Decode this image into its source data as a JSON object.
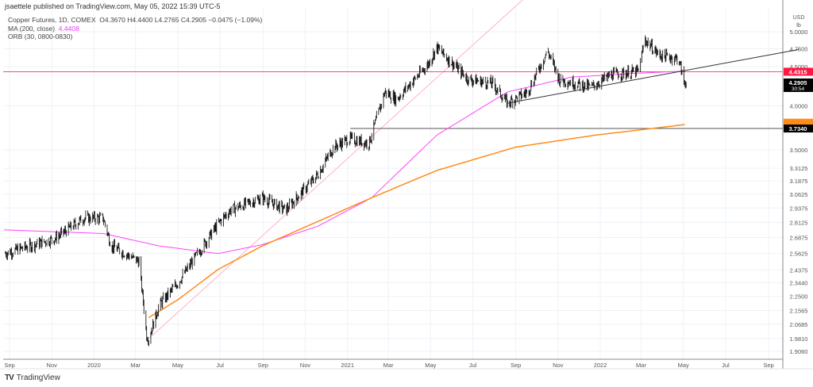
{
  "header": {
    "published": "jsaettele published on TradingView.com, May 05, 2022 15:39 UTC-5"
  },
  "legend": {
    "symbol": "Copper Futures, 1D, COMEX",
    "ohlc": "O4.3670  H4.4400  L4.2765  C4.2905  −0.0475 (−1.09%)",
    "ma_label": "MA (200, close)",
    "ma_value": "4.4408",
    "orb_label": "ORB (30, 0800-0830)"
  },
  "footer": {
    "brand": "TradingView",
    "logo": "TV"
  },
  "chart_data": {
    "type": "ohlc",
    "scale": "log",
    "ylim": [
      1.88,
      5.1
    ],
    "xlim": [
      "2019-08-20",
      "2022-10-15"
    ],
    "grid": true,
    "currency": "USD",
    "unit": "lb",
    "y_ticks": [
      "5.0000",
      "4.7500",
      "4.5000",
      "4.0000",
      "3.5000",
      "3.3125",
      "3.1875",
      "3.0625",
      "2.9375",
      "2.8125",
      "2.6875",
      "2.5625",
      "2.4375",
      "2.3440",
      "2.2500",
      "2.1565",
      "2.0685",
      "1.9810",
      "1.9060"
    ],
    "x_ticks": [
      {
        "label": "Sep",
        "date": "2019-09-01"
      },
      {
        "label": "Nov",
        "date": "2019-11-01"
      },
      {
        "label": "2020",
        "date": "2020-01-01"
      },
      {
        "label": "Mar",
        "date": "2020-03-01"
      },
      {
        "label": "May",
        "date": "2020-05-01"
      },
      {
        "label": "Jul",
        "date": "2020-07-01"
      },
      {
        "label": "Sep",
        "date": "2020-09-01"
      },
      {
        "label": "Nov",
        "date": "2020-11-01"
      },
      {
        "label": "2021",
        "date": "2021-01-01"
      },
      {
        "label": "Mar",
        "date": "2021-03-01"
      },
      {
        "label": "May",
        "date": "2021-05-01"
      },
      {
        "label": "Jul",
        "date": "2021-07-01"
      },
      {
        "label": "Sep",
        "date": "2021-09-01"
      },
      {
        "label": "Nov",
        "date": "2021-11-01"
      },
      {
        "label": "2022",
        "date": "2022-01-01"
      },
      {
        "label": "Mar",
        "date": "2022-03-01"
      },
      {
        "label": "May",
        "date": "2022-05-01"
      },
      {
        "label": "Jul",
        "date": "2022-07-01"
      },
      {
        "label": "Sep",
        "date": "2022-09-01"
      }
    ],
    "price_path": [
      [
        "2019-08-24",
        2.56
      ],
      [
        "2019-11-06",
        2.68
      ],
      [
        "2019-12-17",
        2.85
      ],
      [
        "2020-01-14",
        2.85
      ],
      [
        "2020-01-26",
        2.62
      ],
      [
        "2020-03-06",
        2.5
      ],
      [
        "2020-03-17",
        2.0
      ],
      [
        "2020-03-20",
        1.98
      ],
      [
        "2020-04-04",
        2.19
      ],
      [
        "2020-05-02",
        2.35
      ],
      [
        "2020-06-28",
        2.8
      ],
      [
        "2020-07-16",
        2.92
      ],
      [
        "2020-08-31",
        3.03
      ],
      [
        "2020-10-04",
        2.92
      ],
      [
        "2020-11-19",
        3.25
      ],
      [
        "2020-12-12",
        3.53
      ],
      [
        "2021-01-04",
        3.62
      ],
      [
        "2021-02-01",
        3.57
      ],
      [
        "2021-02-19",
        4.03
      ],
      [
        "2021-02-24",
        4.17
      ],
      [
        "2021-03-13",
        4.08
      ],
      [
        "2021-04-28",
        4.54
      ],
      [
        "2021-05-10",
        4.77
      ],
      [
        "2021-06-07",
        4.49
      ],
      [
        "2021-06-25",
        4.33
      ],
      [
        "2021-07-29",
        4.28
      ],
      [
        "2021-08-20",
        4.03
      ],
      [
        "2021-09-18",
        4.17
      ],
      [
        "2021-10-17",
        4.72
      ],
      [
        "2021-11-03",
        4.33
      ],
      [
        "2021-12-19",
        4.23
      ],
      [
        "2022-01-17",
        4.39
      ],
      [
        "2022-02-26",
        4.44
      ],
      [
        "2022-03-06",
        4.89
      ],
      [
        "2022-03-27",
        4.66
      ],
      [
        "2022-04-24",
        4.61
      ],
      [
        "2022-05-02",
        4.29
      ],
      [
        "2022-05-05",
        4.2905
      ]
    ],
    "ma200": [
      [
        "2019-08-24",
        2.75
      ],
      [
        "2020-01-14",
        2.72
      ],
      [
        "2020-04-04",
        2.62
      ],
      [
        "2020-06-28",
        2.56
      ],
      [
        "2020-08-31",
        2.63
      ],
      [
        "2020-11-19",
        2.78
      ],
      [
        "2021-02-05",
        3.03
      ],
      [
        "2021-05-10",
        3.66
      ],
      [
        "2021-08-20",
        4.17
      ],
      [
        "2021-11-20",
        4.36
      ],
      [
        "2022-02-20",
        4.41
      ],
      [
        "2022-05-05",
        4.4408
      ]
    ],
    "ma_orange": [
      [
        "2020-03-20",
        2.11
      ],
      [
        "2020-05-02",
        2.23
      ],
      [
        "2020-06-28",
        2.44
      ],
      [
        "2020-08-31",
        2.62
      ],
      [
        "2020-11-19",
        2.82
      ],
      [
        "2021-02-05",
        3.03
      ],
      [
        "2021-05-10",
        3.29
      ],
      [
        "2021-09-01",
        3.53
      ],
      [
        "2021-12-25",
        3.66
      ],
      [
        "2022-05-05",
        3.78
      ]
    ],
    "drawings": {
      "horizontal_red": 4.4315,
      "horizontal_black": {
        "value": 3.734,
        "from": "2021-01-05"
      },
      "trendline": [
        [
          "2021-08-20",
          4.03
        ],
        [
          "2022-10-15",
          4.74
        ]
      ],
      "pink_diagonal": [
        [
          "2020-03-20",
          1.98
        ],
        [
          "2021-09-20",
          5.6
        ]
      ]
    },
    "price_labels": [
      {
        "text": "4.4315",
        "color": "#ff1744"
      },
      {
        "text": "4.2905",
        "sub": "30:54",
        "color": "#000000"
      },
      {
        "text": "3.7340",
        "color": "#000000"
      }
    ],
    "colors": {
      "bars": "#000000",
      "ma200": "#ff40ff",
      "ma_orange": "#ff8c1a",
      "red_line": "#ff4d6a",
      "pink_line": "#ffb3c6",
      "grid": "#eef2f7"
    }
  }
}
